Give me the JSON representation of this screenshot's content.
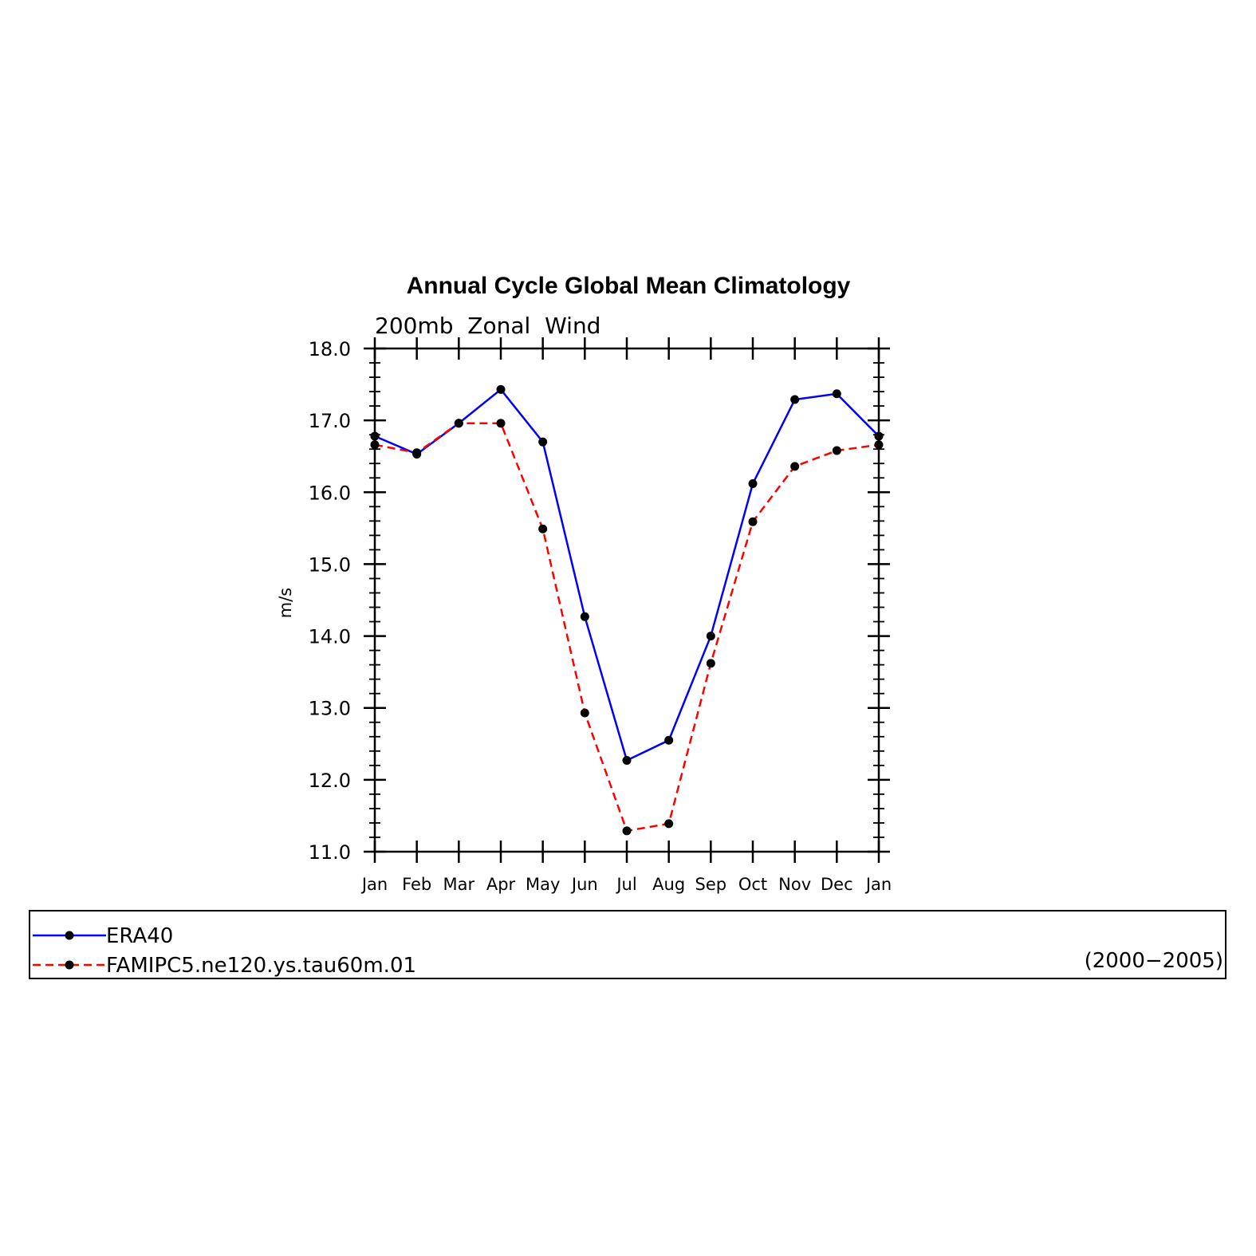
{
  "chart_data": {
    "type": "line",
    "title": "Annual Cycle Global Mean Climatology",
    "subtitle": "200mb  Zonal  Wind",
    "ylabel": "m/s",
    "xlabel": "",
    "categories": [
      "Jan",
      "Feb",
      "Mar",
      "Apr",
      "May",
      "Jun",
      "Jul",
      "Aug",
      "Sep",
      "Oct",
      "Nov",
      "Dec",
      "Jan"
    ],
    "ylim": [
      11.0,
      18.0
    ],
    "yticks": [
      "11.0",
      "12.0",
      "13.0",
      "14.0",
      "15.0",
      "16.0",
      "17.0",
      "18.0"
    ],
    "grid": false,
    "legend_position": "bottom",
    "series": [
      {
        "name": "ERA40",
        "color": "#0000ff",
        "dash": "solid",
        "marker": "filled-circle",
        "values": [
          16.78,
          16.53,
          16.96,
          17.43,
          16.7,
          14.27,
          12.27,
          12.55,
          14.0,
          16.12,
          17.29,
          17.37,
          16.78
        ]
      },
      {
        "name": "FAMIPC5.ne120.ys.tau60m.01",
        "color": "#ff0000",
        "dash": "dashed",
        "marker": "filled-circle",
        "values": [
          16.66,
          16.55,
          16.96,
          16.96,
          15.49,
          12.93,
          11.29,
          11.39,
          13.62,
          15.59,
          16.36,
          16.58,
          16.66
        ]
      }
    ],
    "annotation": "(2000−2005)"
  }
}
